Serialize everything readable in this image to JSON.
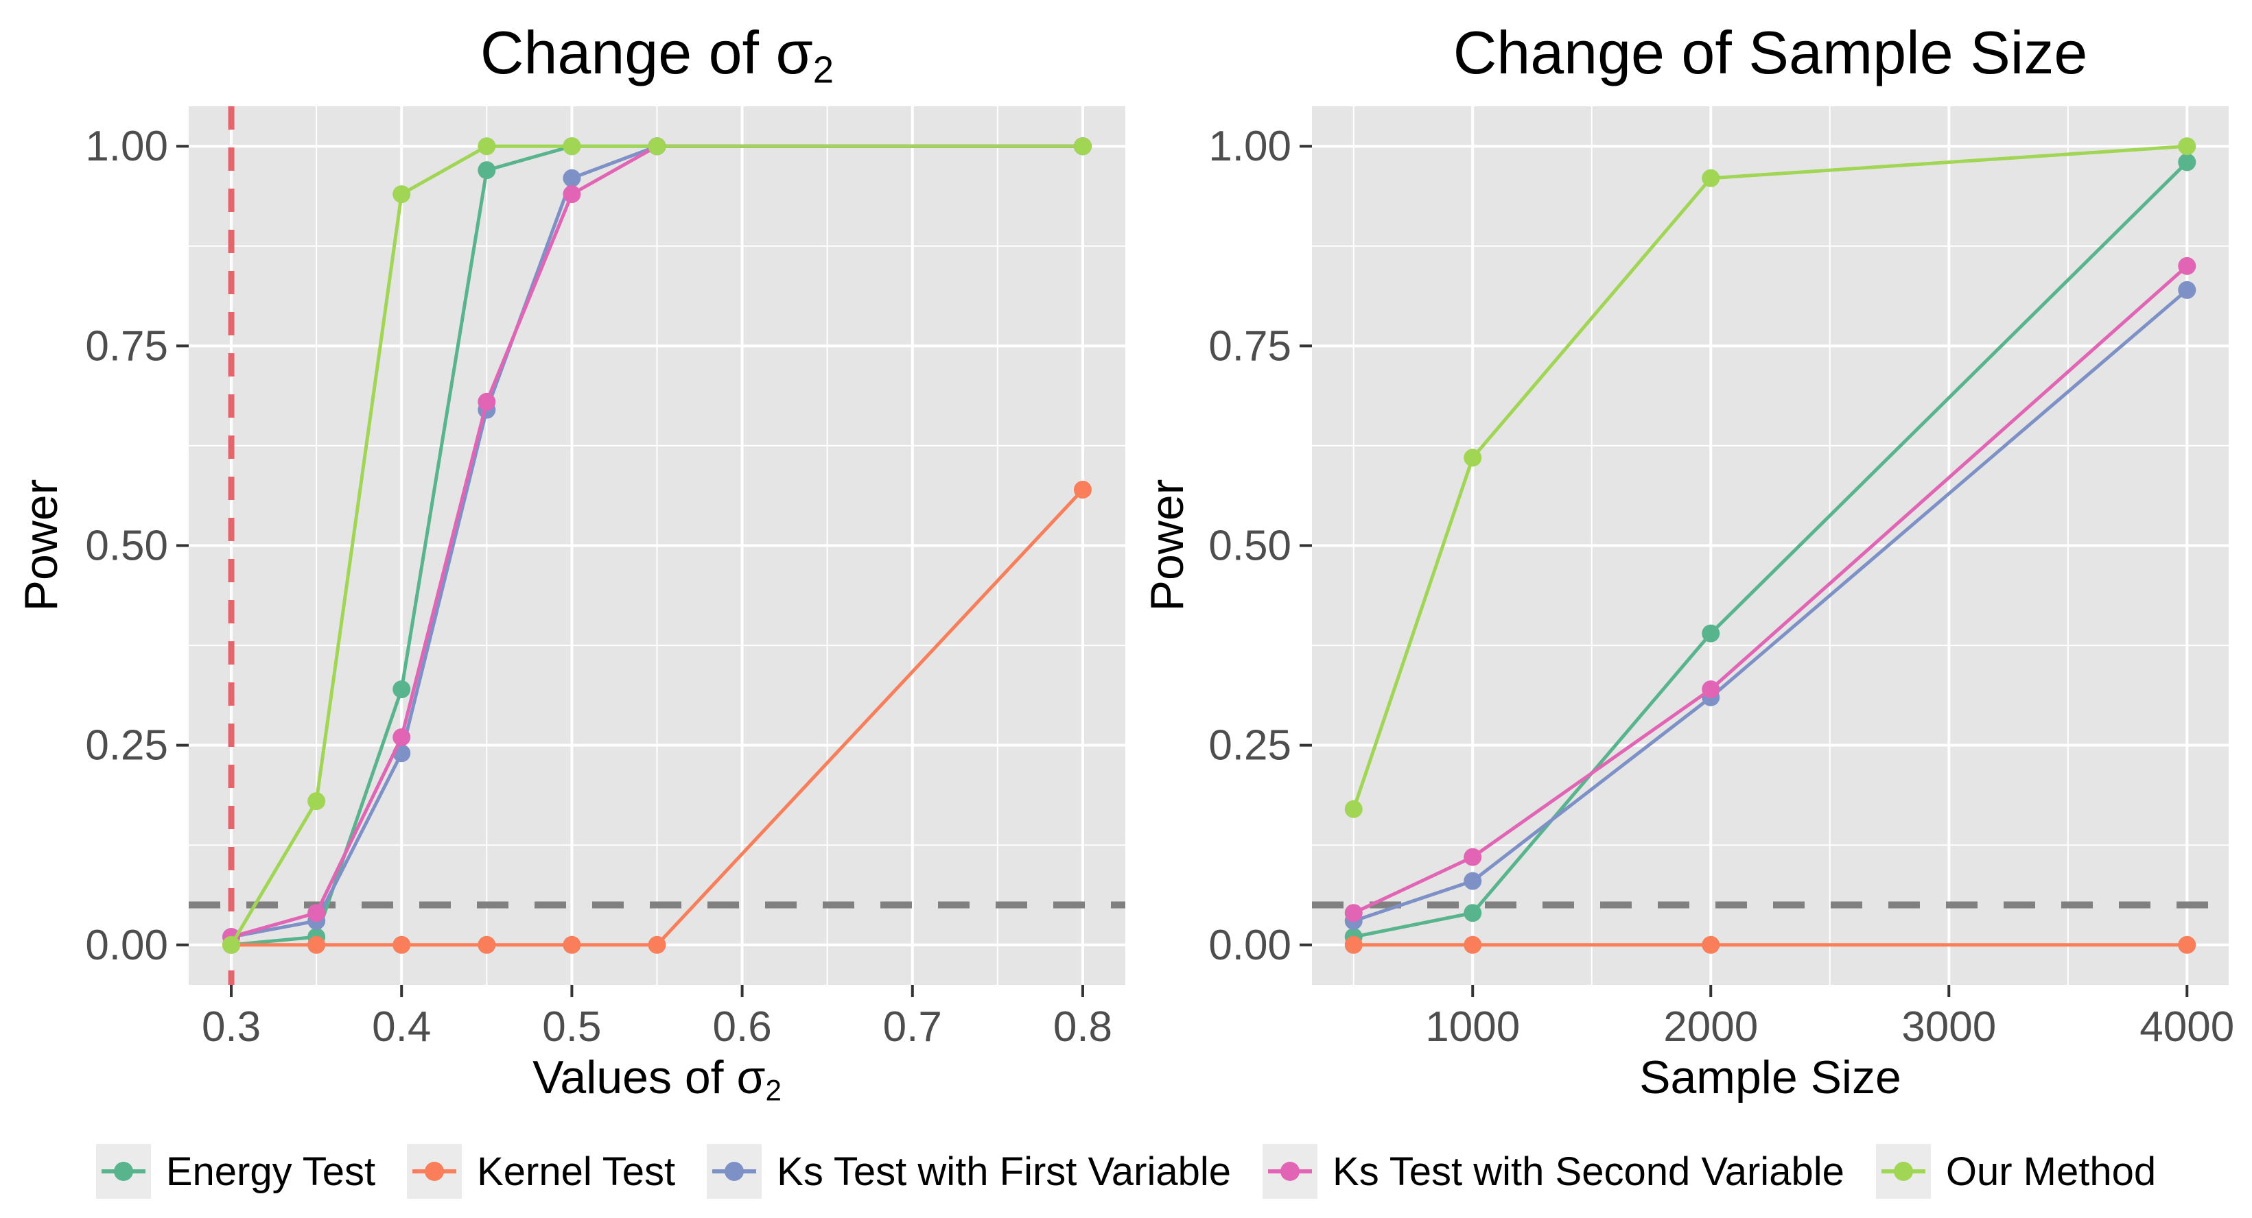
{
  "figure": {
    "ylabel": "Power",
    "significance_level": 0.05,
    "panel_bg": "#E5E5E5",
    "grid_color": "#FFFFFF",
    "tick_label_color": "#4D4D4D"
  },
  "chart_data": [
    {
      "type": "line",
      "title": "Change of σ₂",
      "title_parts": {
        "prefix": "Change of ",
        "sigma": "σ",
        "subscript": "2"
      },
      "xlabel": "Values of σ₂",
      "xlabel_parts": {
        "prefix": "Values of ",
        "sigma": "σ",
        "subscript": "2"
      },
      "ylabel": "Power",
      "x": [
        0.3,
        0.35,
        0.4,
        0.45,
        0.5,
        0.55,
        0.8
      ],
      "xlim": [
        0.275,
        0.825
      ],
      "ylim": [
        -0.05,
        1.05
      ],
      "grid": true,
      "xticks": {
        "values": [
          0.3,
          0.4,
          0.5,
          0.6,
          0.7,
          0.8
        ],
        "labels": [
          "0.3",
          "0.4",
          "0.5",
          "0.6",
          "0.7",
          "0.8"
        ]
      },
      "yticks": {
        "values": [
          0.0,
          0.25,
          0.5,
          0.75,
          1.0
        ],
        "labels": [
          "0.00",
          "0.25",
          "0.50",
          "0.75",
          "1.00"
        ]
      },
      "series": [
        {
          "name": "Energy Test",
          "color": "#57B48C",
          "values": [
            0.0,
            0.01,
            0.32,
            0.97,
            1.0,
            1.0,
            1.0
          ]
        },
        {
          "name": "Kernel Test",
          "color": "#F97E59",
          "values": [
            0.0,
            0.0,
            0.0,
            0.0,
            0.0,
            0.0,
            0.57
          ]
        },
        {
          "name": "Ks Test with First Variable",
          "color": "#7E91C7",
          "values": [
            0.01,
            0.03,
            0.24,
            0.67,
            0.96,
            1.0,
            1.0
          ]
        },
        {
          "name": "Ks Test with Second Variable",
          "color": "#E264B4",
          "values": [
            0.01,
            0.04,
            0.26,
            0.68,
            0.94,
            1.0,
            1.0
          ]
        },
        {
          "name": "Our Method",
          "color": "#A0D653",
          "values": [
            0.0,
            0.18,
            0.94,
            1.0,
            1.0,
            1.0,
            1.0
          ]
        }
      ],
      "ref_lines": [
        {
          "type": "vline",
          "x": 0.3,
          "color": "#E8636C",
          "style": "dashed"
        },
        {
          "type": "hline",
          "y": 0.05,
          "color": "#808080",
          "style": "dashed"
        }
      ]
    },
    {
      "type": "line",
      "title": "Change of Sample Size",
      "xlabel": "Sample Size",
      "ylabel": "Power",
      "x": [
        500,
        1000,
        2000,
        4000
      ],
      "xlim": [
        325,
        4175
      ],
      "ylim": [
        -0.05,
        1.05
      ],
      "grid": true,
      "xticks": {
        "values": [
          1000,
          2000,
          3000,
          4000
        ],
        "labels": [
          "1000",
          "2000",
          "3000",
          "4000"
        ]
      },
      "yticks": {
        "values": [
          0.0,
          0.25,
          0.5,
          0.75,
          1.0
        ],
        "labels": [
          "0.00",
          "0.25",
          "0.50",
          "0.75",
          "1.00"
        ]
      },
      "series": [
        {
          "name": "Energy Test",
          "color": "#57B48C",
          "values": [
            0.01,
            0.04,
            0.39,
            0.98
          ]
        },
        {
          "name": "Kernel Test",
          "color": "#F97E59",
          "values": [
            0.0,
            0.0,
            0.0,
            0.0
          ]
        },
        {
          "name": "Ks Test with First Variable",
          "color": "#7E91C7",
          "values": [
            0.03,
            0.08,
            0.31,
            0.82
          ]
        },
        {
          "name": "Ks Test with Second Variable",
          "color": "#E264B4",
          "values": [
            0.04,
            0.11,
            0.32,
            0.85
          ]
        },
        {
          "name": "Our Method",
          "color": "#A0D653",
          "values": [
            0.17,
            0.61,
            0.96,
            1.0
          ]
        }
      ],
      "ref_lines": [
        {
          "type": "hline",
          "y": 0.05,
          "color": "#808080",
          "style": "dashed"
        }
      ]
    }
  ],
  "legend": {
    "position": "bottom",
    "items": [
      {
        "label": "Energy Test",
        "color": "#57B48C"
      },
      {
        "label": "Kernel Test",
        "color": "#F97E59"
      },
      {
        "label": "Ks Test with First Variable",
        "color": "#7E91C7"
      },
      {
        "label": "Ks Test with Second Variable",
        "color": "#E264B4"
      },
      {
        "label": "Our Method",
        "color": "#A0D653"
      }
    ]
  }
}
